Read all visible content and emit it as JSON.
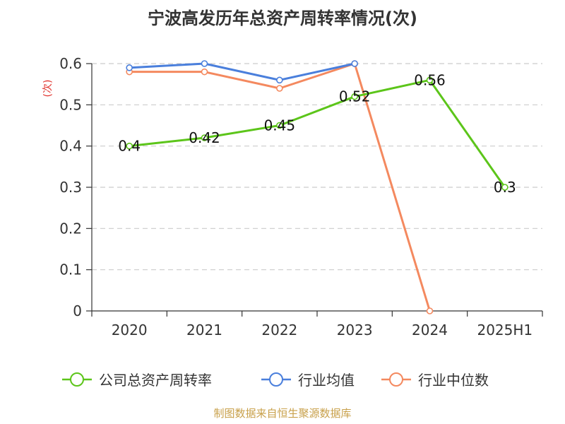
{
  "title": "宁波高发历年总资产周转率情况(次)",
  "source": "制图数据来自恒生聚源数据库",
  "colors": {
    "source_text": "#c8a04a",
    "unit_text": "#e0302a",
    "axis": "#333333",
    "grid": "#cccccc"
  },
  "chart_data": {
    "type": "line",
    "categories": [
      "2020",
      "2021",
      "2022",
      "2023",
      "2024",
      "2025H1"
    ],
    "ylabel": "(次)",
    "ylim": [
      0,
      0.6
    ],
    "yticks": [
      0,
      0.1,
      0.2,
      0.3,
      0.4,
      0.5,
      0.6
    ],
    "ytick_labels": [
      "0",
      "0.1",
      "0.2",
      "0.3",
      "0.4",
      "0.5",
      "0.6"
    ],
    "grid": true,
    "legend_position": "bottom",
    "series": [
      {
        "name": "公司总资产周转率",
        "color": "#5cc51a",
        "values": [
          0.4,
          0.42,
          0.45,
          0.52,
          0.56,
          0.3
        ],
        "labels": [
          "0.4",
          "0.42",
          "0.45",
          "0.52",
          "0.56",
          "0.3"
        ]
      },
      {
        "name": "行业均值",
        "color": "#4a7fdc",
        "values": [
          0.59,
          0.6,
          0.56,
          0.6,
          null,
          null
        ]
      },
      {
        "name": "行业中位数",
        "color": "#f4895f",
        "values": [
          0.58,
          0.58,
          0.54,
          0.6,
          0,
          null
        ]
      }
    ]
  }
}
